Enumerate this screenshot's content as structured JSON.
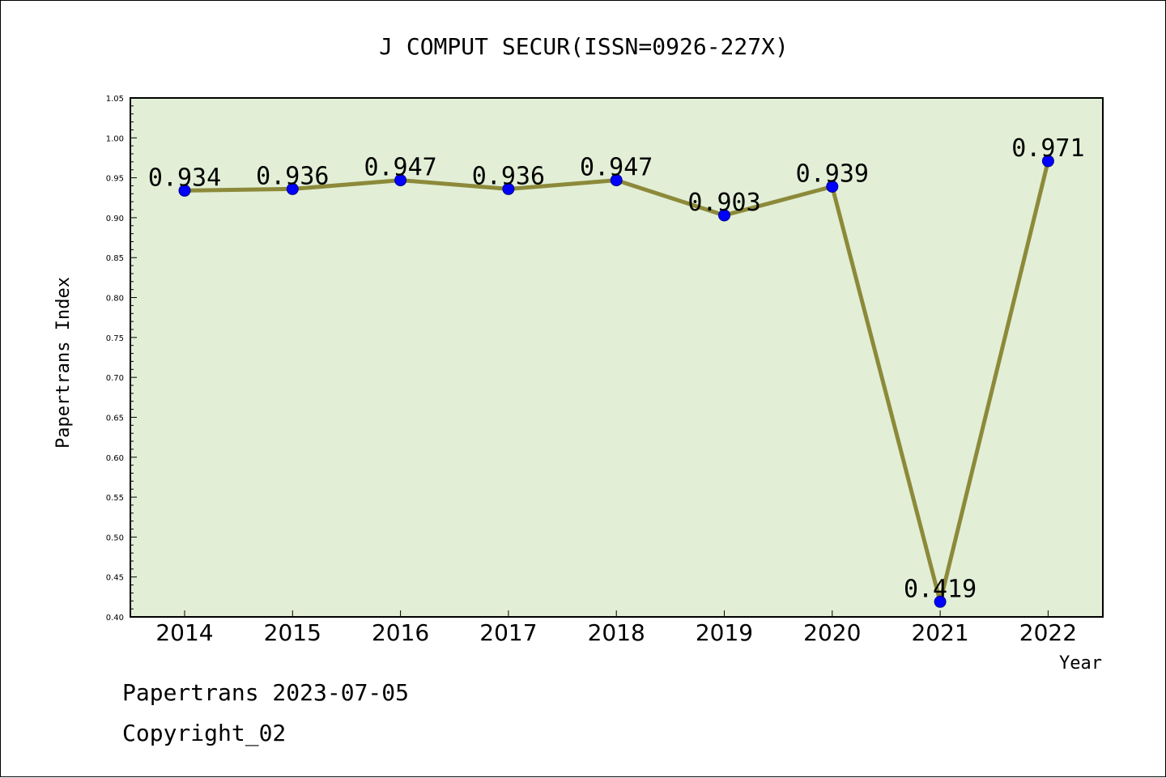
{
  "chart_data": {
    "type": "line",
    "title": "J COMPUT SECUR(ISSN=0926-227X)",
    "xlabel": "Year",
    "ylabel": "Papertrans Index",
    "x": [
      "2014",
      "2015",
      "2016",
      "2017",
      "2018",
      "2019",
      "2020",
      "2021",
      "2022"
    ],
    "values": [
      0.934,
      0.936,
      0.947,
      0.936,
      0.947,
      0.903,
      0.939,
      0.419,
      0.971
    ],
    "data_labels": [
      "0.934",
      "0.936",
      "0.947",
      "0.936",
      "0.947",
      "0.903",
      "0.939",
      "0.419",
      "0.971"
    ],
    "ylim": [
      0.4,
      1.05
    ],
    "yticks": [
      "0.40",
      "0.45",
      "0.50",
      "0.55",
      "0.60",
      "0.65",
      "0.70",
      "0.75",
      "0.80",
      "0.85",
      "0.90",
      "0.95",
      "1.00",
      "1.05"
    ],
    "grid": false,
    "colors": {
      "plot_background": "#e2efd6",
      "line": "#8c8a3a",
      "marker": "#0000ff"
    }
  },
  "footer": {
    "date_line": "Papertrans 2023-07-05",
    "copyright": "Copyright_02"
  }
}
